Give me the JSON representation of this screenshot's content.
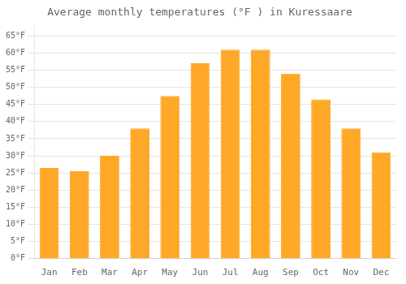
{
  "chart_data": {
    "type": "bar",
    "title": "Average monthly temperatures (°F ) in Kuressaare",
    "categories": [
      "Jan",
      "Feb",
      "Mar",
      "Apr",
      "May",
      "Jun",
      "Jul",
      "Aug",
      "Sep",
      "Oct",
      "Nov",
      "Dec"
    ],
    "values": [
      26.5,
      25.5,
      30.0,
      38.0,
      47.5,
      57.0,
      61.0,
      61.0,
      54.0,
      46.5,
      38.0,
      31.0
    ],
    "color": "#FFA726",
    "ylim": [
      0,
      68
    ],
    "yticks": [
      {
        "value": 0,
        "label": "0°F"
      },
      {
        "value": 5,
        "label": "5°F"
      },
      {
        "value": 10,
        "label": "10°F"
      },
      {
        "value": 15,
        "label": "15°F"
      },
      {
        "value": 20,
        "label": "20°F"
      },
      {
        "value": 25,
        "label": "25°F"
      },
      {
        "value": 30,
        "label": "30°F"
      },
      {
        "value": 35,
        "label": "35°F"
      },
      {
        "value": 40,
        "label": "40°F"
      },
      {
        "value": 45,
        "label": "45°F"
      },
      {
        "value": 50,
        "label": "50°F"
      },
      {
        "value": 55,
        "label": "55°F"
      },
      {
        "value": 60,
        "label": "60°F"
      },
      {
        "value": 65,
        "label": "65°F"
      }
    ],
    "grid": true
  }
}
